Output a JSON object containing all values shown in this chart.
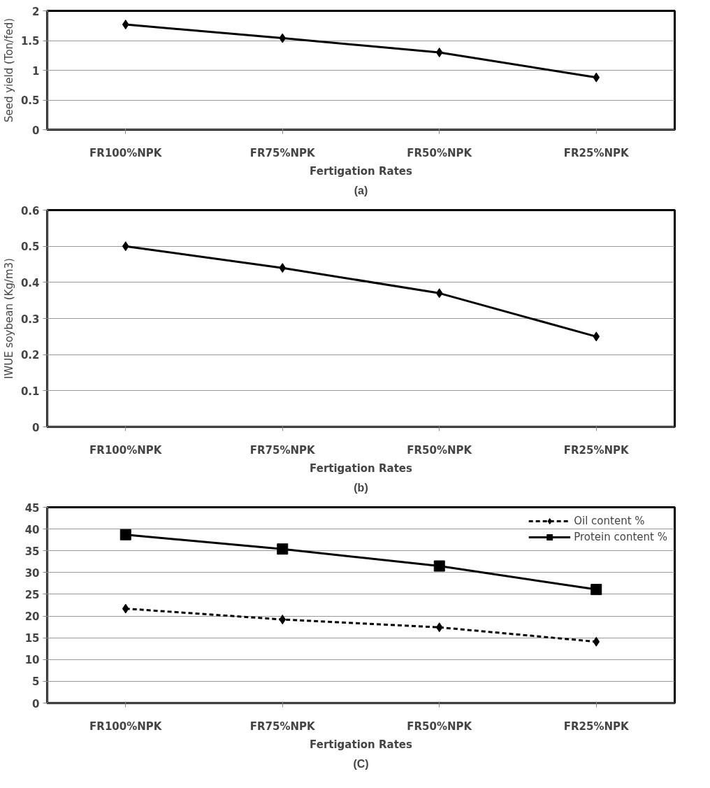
{
  "chart_data": [
    {
      "type": "line",
      "xlabel": "Fertigation Rates",
      "ylabel": "Seed yield (Ton/fed)",
      "annotations": [
        "(a)"
      ],
      "categories": [
        "FR100%NPK",
        "FR75%NPK",
        "FR50%NPK",
        "FR25%NPK"
      ],
      "series": [
        {
          "color": "#000000",
          "values": [
            1.77,
            1.54,
            1.3,
            0.88
          ],
          "marker": "diamond",
          "line_style": "solid"
        }
      ],
      "ylim": [
        0,
        2
      ],
      "yticks": [
        0,
        0.5,
        1,
        1.5,
        2
      ],
      "grid": "y",
      "legend": false
    },
    {
      "type": "line",
      "xlabel": "Fertigation Rates",
      "ylabel": "IWUE soybean (Kg/m3)",
      "annotations": [
        "(b)"
      ],
      "categories": [
        "FR100%NPK",
        "FR75%NPK",
        "FR50%NPK",
        "FR25%NPK"
      ],
      "series": [
        {
          "color": "#000000",
          "values": [
            0.5,
            0.44,
            0.37,
            0.25
          ],
          "marker": "diamond",
          "line_style": "solid"
        }
      ],
      "ylim": [
        0,
        0.6
      ],
      "yticks": [
        {
          "value": 0,
          "label": "0"
        },
        0.1,
        0.2,
        0.3,
        0.4,
        0.5,
        0.6
      ],
      "grid": "y",
      "legend": false
    },
    {
      "type": "line",
      "xlabel": "Fertigation Rates",
      "annotations": [
        "(C)"
      ],
      "categories": [
        "FR100%NPK",
        "FR75%NPK",
        "FR50%NPK",
        "FR25%NPK"
      ],
      "series": [
        {
          "name": "Oil content %",
          "color": "#000000",
          "values": [
            21.7,
            19.2,
            17.4,
            14.1
          ],
          "marker": "diamond",
          "line_style": "dashed"
        },
        {
          "name": "Protein content %",
          "color": "#000000",
          "values": [
            38.7,
            35.4,
            31.5,
            26.1
          ],
          "marker": "square",
          "line_style": "solid"
        }
      ],
      "ylim": [
        0,
        45
      ],
      "yticks": [
        0,
        5,
        10,
        15,
        20,
        25,
        30,
        35,
        40,
        45
      ],
      "grid": "y",
      "legend": "top right"
    }
  ]
}
